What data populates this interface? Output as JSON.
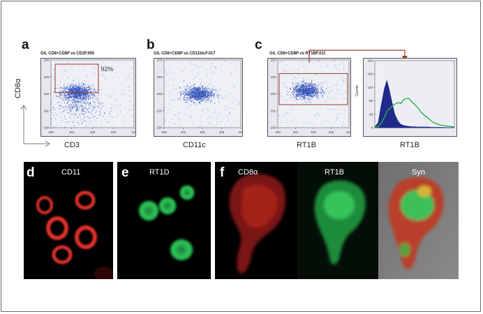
{
  "figure": {
    "row_top": {
      "panel_a": {
        "letter": "a",
        "title": "G/L CD8+CD8P vs CD3F.005",
        "xlabel": "CD3",
        "ylabel": "CD8α",
        "gate_percent": "92%"
      },
      "panel_b": {
        "letter": "b",
        "title": "G/L CD8+CD8P vs CD11b/cF.017",
        "xlabel": "CD11c"
      },
      "panel_c": {
        "letter": "c",
        "title": "G/L CD8+CD8P vs RT1BF.011",
        "xlabel": "RT1B",
        "histogram_xlabel": "RT1B",
        "histogram_ylabel": "Counts"
      }
    },
    "row_bottom": {
      "panel_d": {
        "letter": "d",
        "label": "CD11"
      },
      "panel_e": {
        "letter": "e",
        "label": "RT1D"
      },
      "panel_f": {
        "letter": "f",
        "labels": [
          "CD8α",
          "RT1B",
          "Syn"
        ]
      }
    },
    "colors": {
      "dots": "#2e4fb8",
      "gate": "#a33a2a",
      "hist_blue": "#1f2a8a",
      "hist_green": "#2fb24a",
      "cd11_red": "#e0302a",
      "rt1d_green": "#2ecf5a"
    }
  },
  "chart_data": [
    {
      "type": "scatter",
      "panel": "a",
      "title": "G/L CD8+CD8P vs CD3F.005",
      "xlabel": "CD3",
      "ylabel": "CD8α",
      "x_scale": "log",
      "y_scale": "log",
      "xlim": [
        1,
        10000
      ],
      "ylim": [
        1,
        10000
      ],
      "x_ticks": [
        "10^0",
        "10^1",
        "10^2",
        "10^3",
        "10^4"
      ],
      "y_ticks": [
        "10^0",
        "10^1",
        "10^2",
        "10^3",
        "10^4"
      ],
      "annotations": [
        "92%"
      ],
      "clusters": [
        {
          "center": [
            18,
            120
          ],
          "spread": "dense"
        },
        {
          "center": [
            25,
            20
          ],
          "spread": "sparse"
        }
      ]
    },
    {
      "type": "scatter",
      "panel": "b",
      "title": "G/L CD8+CD8P vs CD11b/cF.017",
      "xlabel": "CD11c",
      "x_scale": "log",
      "y_scale": "log",
      "xlim": [
        1,
        10000
      ],
      "ylim": [
        1,
        10000
      ],
      "x_ticks": [
        "10^0",
        "10^1",
        "10^2",
        "10^3",
        "10^4"
      ],
      "y_ticks": [
        "10^0",
        "10^1",
        "10^2",
        "10^3",
        "10^4"
      ],
      "clusters": [
        {
          "center": [
            60,
            100
          ],
          "spread": "dense"
        }
      ]
    },
    {
      "type": "scatter",
      "panel": "c",
      "title": "G/L CD8+CD8P vs RT1BF.011",
      "xlabel": "RT1B",
      "x_scale": "log",
      "y_scale": "log",
      "xlim": [
        1,
        10000
      ],
      "ylim": [
        1,
        10000
      ],
      "x_ticks": [
        "10^0",
        "10^1",
        "10^2",
        "10^3",
        "10^4"
      ],
      "y_ticks": [
        "10^0",
        "10^1",
        "10^2",
        "10^3",
        "10^4"
      ],
      "clusters": [
        {
          "center": [
            40,
            150
          ],
          "spread": "dense"
        }
      ]
    },
    {
      "type": "area",
      "panel": "c-histogram",
      "xlabel": "RT1B",
      "ylabel": "Counts",
      "x_scale": "log",
      "xlim": [
        1,
        10000
      ],
      "ylim": [
        0,
        200
      ],
      "y_ticks": [
        0,
        40,
        80,
        120,
        160,
        200
      ],
      "x": [
        1,
        1.5,
        2,
        3,
        4,
        5,
        7,
        10,
        15,
        20,
        30,
        50,
        70,
        100,
        150,
        200,
        300,
        500,
        700,
        1000,
        2000,
        5000,
        10000
      ],
      "series": [
        {
          "values": [
            2,
            15,
            60,
            115,
            140,
            120,
            80,
            40,
            18,
            10,
            6,
            4,
            3,
            3,
            2,
            2,
            2,
            2,
            1,
            1,
            1,
            0,
            0
          ]
        },
        {
          "values": [
            1,
            4,
            12,
            30,
            48,
            55,
            62,
            70,
            75,
            72,
            85,
            88,
            78,
            70,
            58,
            48,
            38,
            28,
            20,
            14,
            8,
            4,
            2
          ]
        }
      ]
    }
  ]
}
